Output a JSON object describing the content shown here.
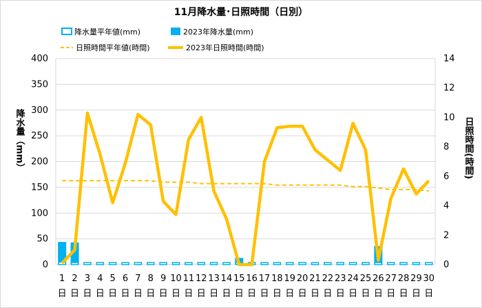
{
  "chart_data": {
    "type": "bar+line",
    "title": "11月降水量･日照時間（日別）",
    "categories": [
      "1",
      "2",
      "3",
      "4",
      "5",
      "6",
      "7",
      "8",
      "9",
      "10",
      "11",
      "12",
      "13",
      "14",
      "15",
      "16",
      "17",
      "18",
      "19",
      "20",
      "21",
      "22",
      "23",
      "24",
      "25",
      "26",
      "27",
      "28",
      "29",
      "30"
    ],
    "day_unit": "日",
    "y_left": {
      "label": "降水量（mm）",
      "lim": [
        0,
        400
      ],
      "ticks": [
        0,
        50,
        100,
        150,
        200,
        250,
        300,
        350,
        400
      ]
    },
    "y_right": {
      "label": "日照時間(時間)",
      "lim": [
        0,
        14
      ],
      "ticks": [
        0,
        2,
        4,
        6,
        8,
        10,
        12,
        14
      ]
    },
    "series": [
      {
        "name": "降水量平年値(mm)",
        "type": "bar",
        "axis": "left",
        "color": "#00b0f0",
        "style": "outline",
        "values": [
          5,
          4,
          4,
          4,
          4,
          4,
          4,
          4,
          4,
          4,
          4,
          4,
          4,
          4,
          4,
          4,
          4,
          4,
          4,
          4,
          4,
          4,
          4,
          4,
          4,
          4,
          4,
          4,
          4,
          4
        ]
      },
      {
        "name": "2023年降水量(mm)",
        "type": "bar",
        "axis": "left",
        "color": "#00b0f0",
        "style": "filled",
        "values": [
          44,
          43,
          0,
          0,
          0,
          0,
          0,
          0,
          0,
          2,
          2,
          0,
          0,
          0,
          13,
          0,
          0,
          0,
          0,
          0,
          0,
          0,
          0,
          0,
          0,
          36,
          0,
          0,
          0,
          0
        ]
      },
      {
        "name": "日照時間平年値(時間)",
        "type": "line",
        "axis": "right",
        "color": "#ffc000",
        "style": "dashed",
        "values": [
          5.7,
          5.7,
          5.7,
          5.7,
          5.7,
          5.7,
          5.7,
          5.7,
          5.6,
          5.6,
          5.6,
          5.5,
          5.5,
          5.5,
          5.5,
          5.5,
          5.5,
          5.4,
          5.4,
          5.4,
          5.4,
          5.4,
          5.4,
          5.3,
          5.3,
          5.2,
          5.1,
          5.1,
          5.1,
          5.0
        ]
      },
      {
        "name": "2023年日照時間(時間)",
        "type": "line",
        "axis": "right",
        "color": "#ffc000",
        "style": "solid",
        "values": [
          0.1,
          1.0,
          10.3,
          7.5,
          4.2,
          6.9,
          10.2,
          9.5,
          4.3,
          3.4,
          8.5,
          10.0,
          5.0,
          3.1,
          0.0,
          0.0,
          7.0,
          9.3,
          9.4,
          9.4,
          7.8,
          7.1,
          6.4,
          9.6,
          7.8,
          0.3,
          4.5,
          6.5,
          4.8,
          5.7
        ]
      }
    ],
    "grid": true,
    "legend_position": "top"
  }
}
